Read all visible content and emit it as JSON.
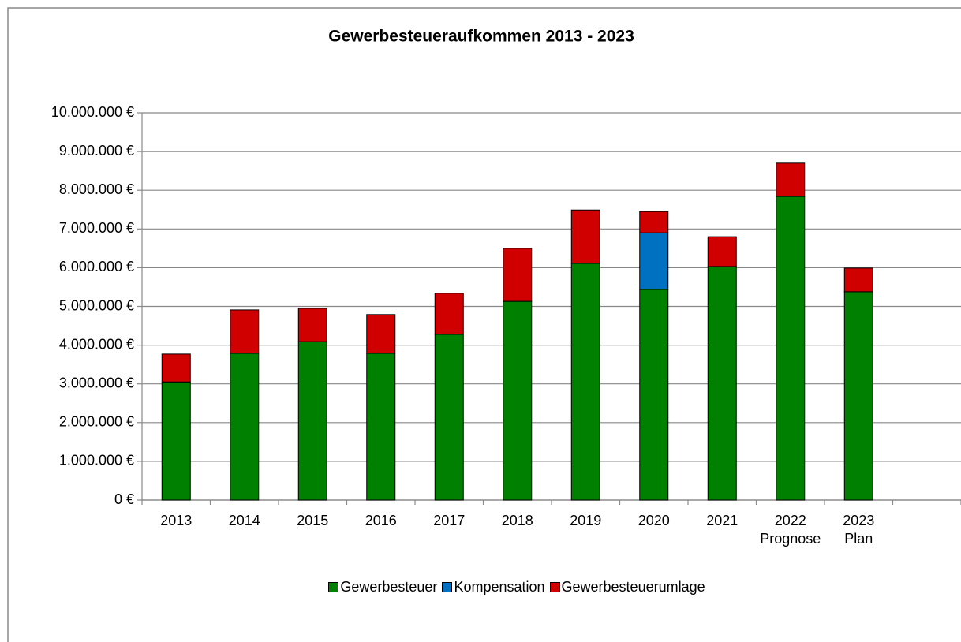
{
  "chart_data": {
    "type": "stacked_bar",
    "title": "Gewerbesteueraufkommen 2013 - 2023",
    "categories": [
      "2013",
      "2014",
      "2015",
      "2016",
      "2017",
      "2018",
      "2019",
      "2020",
      "2021",
      "2022\nPrognose",
      "2023\nPlan",
      null
    ],
    "series": [
      {
        "name": "Gewerbesteuer",
        "color": "#008000",
        "values": [
          3050000,
          3790000,
          4090000,
          3790000,
          4280000,
          5130000,
          6110000,
          5440000,
          6030000,
          7840000,
          5380000,
          null
        ]
      },
      {
        "name": "Kompensation",
        "color": "#0070c0",
        "values": [
          null,
          null,
          null,
          null,
          null,
          null,
          null,
          1460000,
          null,
          null,
          null,
          null
        ]
      },
      {
        "name": "Gewerbesteuerumlage",
        "color": "#d00000",
        "values": [
          720000,
          1120000,
          860000,
          1000000,
          1060000,
          1370000,
          1380000,
          550000,
          770000,
          860000,
          610000,
          null
        ]
      }
    ],
    "ylim": [
      0,
      10000000
    ],
    "yticks": [
      {
        "value": 0,
        "label": "0 €"
      },
      {
        "value": 1000000,
        "label": "1.000.000 €"
      },
      {
        "value": 2000000,
        "label": "2.000.000 €"
      },
      {
        "value": 3000000,
        "label": "3.000.000 €"
      },
      {
        "value": 4000000,
        "label": "4.000.000 €"
      },
      {
        "value": 5000000,
        "label": "5.000.000 €"
      },
      {
        "value": 6000000,
        "label": "6.000.000 €"
      },
      {
        "value": 7000000,
        "label": "7.000.000 €"
      },
      {
        "value": 8000000,
        "label": "8.000.000 €"
      },
      {
        "value": 9000000,
        "label": "9.000.000 €"
      },
      {
        "value": 10000000,
        "label": "10.000.000 €"
      }
    ],
    "grid": true,
    "legend": "bottom"
  }
}
